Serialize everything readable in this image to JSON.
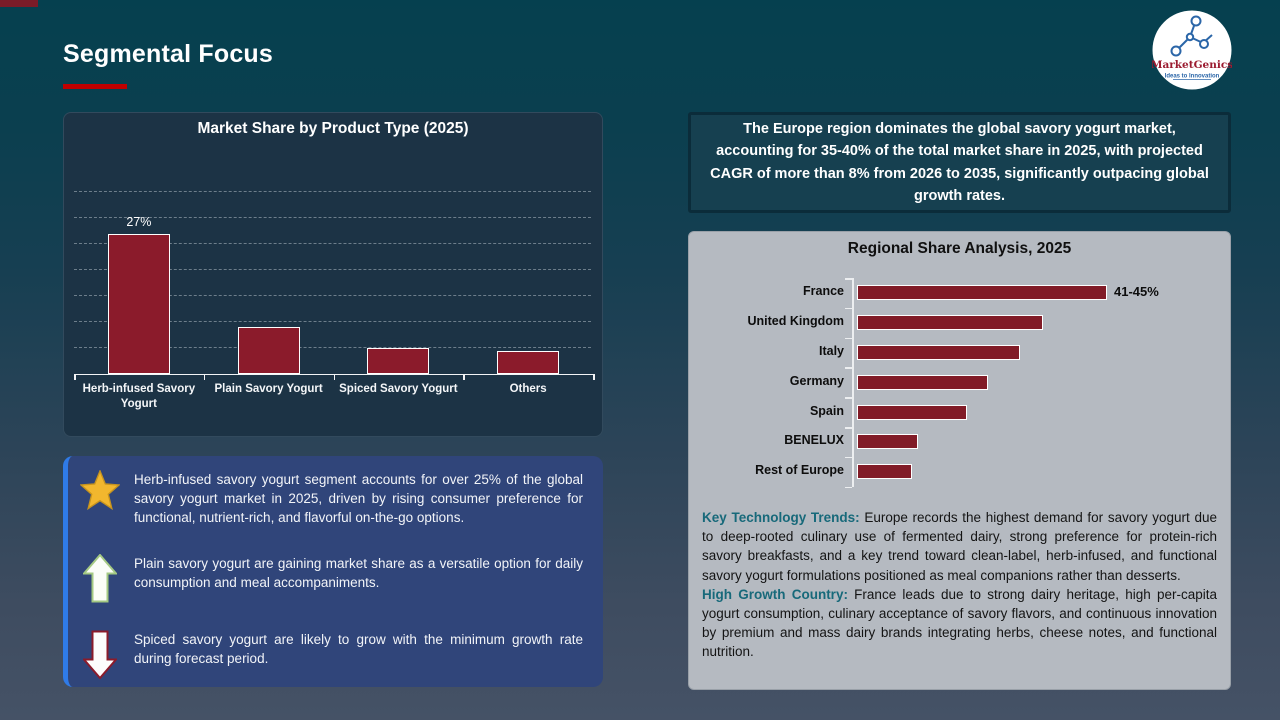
{
  "slide": {
    "title": "Segmental Focus",
    "accent_color": "#C00000",
    "corner_bar_color": "#7A1B28"
  },
  "logo": {
    "brand": "MarketGenics",
    "tagline": "Ideas to Innovation",
    "brand_color": "#9B1B30",
    "icon_color": "#2B66A8"
  },
  "europe_callout": {
    "text": "The Europe region dominates the global savory yogurt market, accounting for 35-40% of the total market share in 2025, with projected CAGR of more than 8% from 2026 to 2035, significantly outpacing global growth rates."
  },
  "chart_data": [
    {
      "type": "bar",
      "title": "Market Share by Product Type (2025)",
      "categories": [
        "Herb-infused Savory Yogurt",
        "Plain Savory Yogurt",
        "Spiced Savory Yogurt",
        "Others"
      ],
      "values": [
        27,
        9,
        5,
        4.5
      ],
      "data_labels": [
        "27%",
        "",
        "",
        ""
      ],
      "xlabel": "",
      "ylabel": "",
      "ylim": [
        0,
        35
      ],
      "gridline_step": 5,
      "grid": true,
      "legend": "none",
      "bar_color": "#8B1B2B",
      "bar_border": "#FFFFFF"
    },
    {
      "type": "bar",
      "orientation": "horizontal",
      "title": "Regional Share Analysis, 2025",
      "categories": [
        "France",
        "United Kingdom",
        "Italy",
        "Germany",
        "Spain",
        "BENELUX",
        "Rest of Europe"
      ],
      "values": [
        43,
        32,
        28,
        22.5,
        19,
        10.5,
        9.5
      ],
      "data_labels": [
        "41-45%",
        "",
        "",
        "",
        "",
        "",
        ""
      ],
      "xlabel": "",
      "ylabel": "",
      "xlim": [
        0,
        48
      ],
      "grid": false,
      "legend": "none",
      "bar_color": "#811B27",
      "bar_border": "#FFFFFF"
    }
  ],
  "insights": [
    {
      "icon": "star",
      "text": "Herb-infused savory yogurt segment accounts for over 25% of the global savory yogurt market in 2025, driven by rising consumer preference for functional, nutrient-rich, and flavorful on-the-go options."
    },
    {
      "icon": "arrow-up",
      "text": "Plain savory yogurt are gaining market share as a versatile option for daily consumption and meal accompaniments."
    },
    {
      "icon": "arrow-down",
      "text": "Spiced savory yogurt are likely to grow with the minimum growth rate during forecast period."
    }
  ],
  "trends": [
    {
      "label": "Key Technology Trends:",
      "label_color": "#17697A",
      "text": " Europe records the highest demand for savory yogurt due to deep-rooted culinary use of fermented dairy, strong preference for protein-rich savory breakfasts, and a key trend toward clean-label, herb-infused, and functional savory yogurt formulations positioned as meal companions rather than desserts."
    },
    {
      "label": "High Growth Country:",
      "label_color": "#17697A",
      "text": " France leads due to strong dairy heritage, high per-capita yogurt consumption, culinary acceptance of savory flavors, and continuous innovation by premium and mass dairy brands integrating herbs, cheese notes, and functional nutrition."
    }
  ]
}
